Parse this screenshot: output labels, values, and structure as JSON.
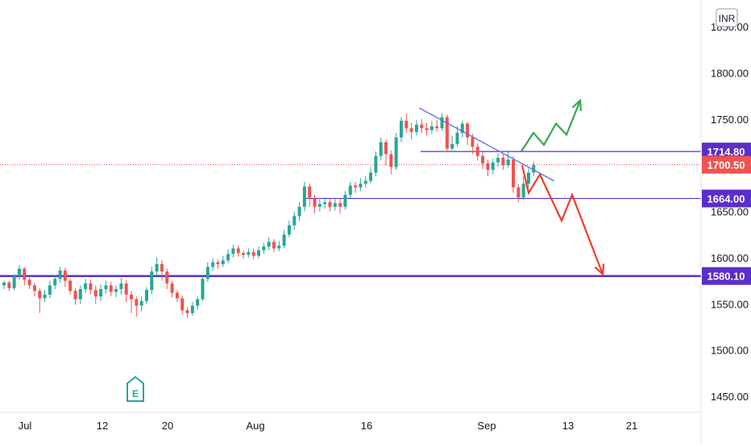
{
  "header": {
    "currency": "INR"
  },
  "earnings_badge": "E",
  "colors": {
    "up": "#26a69a",
    "down": "#ef5350",
    "level_line": "#5b2ec9",
    "trend_line": "#5b6ee1",
    "projection_up": "#34a853",
    "projection_down": "#ef3b2c",
    "current_price_line": "#ef5350",
    "text": "#131722"
  },
  "chart_data": {
    "type": "candlestick",
    "x_tick_labels": [
      "Jul",
      "12",
      "20",
      "Aug",
      "16",
      "Sep",
      "13",
      "21"
    ],
    "y_tick_labels": [
      "1850.00",
      "1800.00",
      "1750.00",
      "1700.00",
      "1650.00",
      "1600.00",
      "1550.00",
      "1500.00",
      "1450.00"
    ],
    "y_range": [
      1435,
      1870
    ],
    "horizontal_levels": [
      {
        "value": 1714.8,
        "label": "1714.80",
        "style": "thin"
      },
      {
        "value": 1664.0,
        "label": "1664.00",
        "style": "thin"
      },
      {
        "value": 1580.1,
        "label": "1580.10",
        "style": "thick"
      }
    ],
    "current_price": {
      "value": 1700.5,
      "label": "1700.50"
    },
    "candles": [
      [
        1570,
        1573,
        1575,
        1566
      ],
      [
        1573,
        1567,
        1575,
        1564
      ],
      [
        1567,
        1580,
        1582,
        1565
      ],
      [
        1580,
        1588,
        1592,
        1576
      ],
      [
        1588,
        1576,
        1590,
        1570
      ],
      [
        1576,
        1570,
        1580,
        1566
      ],
      [
        1570,
        1564,
        1573,
        1558
      ],
      [
        1564,
        1556,
        1567,
        1540
      ],
      [
        1556,
        1560,
        1565,
        1552
      ],
      [
        1560,
        1570,
        1575,
        1556
      ],
      [
        1570,
        1577,
        1581,
        1566
      ],
      [
        1577,
        1586,
        1590,
        1573
      ],
      [
        1586,
        1575,
        1589,
        1568
      ],
      [
        1575,
        1564,
        1578,
        1560
      ],
      [
        1564,
        1555,
        1567,
        1549
      ],
      [
        1555,
        1566,
        1570,
        1550
      ],
      [
        1566,
        1572,
        1577,
        1562
      ],
      [
        1572,
        1565,
        1576,
        1560
      ],
      [
        1565,
        1558,
        1570,
        1550
      ],
      [
        1558,
        1566,
        1571,
        1553
      ],
      [
        1566,
        1570,
        1575,
        1561
      ],
      [
        1570,
        1563,
        1574,
        1558
      ],
      [
        1563,
        1566,
        1570,
        1557
      ],
      [
        1566,
        1572,
        1578,
        1560
      ],
      [
        1572,
        1560,
        1576,
        1552
      ],
      [
        1560,
        1555,
        1564,
        1540
      ],
      [
        1555,
        1548,
        1558,
        1536
      ],
      [
        1548,
        1553,
        1558,
        1542
      ],
      [
        1553,
        1565,
        1568,
        1550
      ],
      [
        1565,
        1585,
        1590,
        1560
      ],
      [
        1585,
        1593,
        1600,
        1578
      ],
      [
        1593,
        1585,
        1597,
        1575
      ],
      [
        1585,
        1572,
        1588,
        1566
      ],
      [
        1572,
        1562,
        1575,
        1557
      ],
      [
        1562,
        1556,
        1565,
        1552
      ],
      [
        1556,
        1543,
        1559,
        1538
      ],
      [
        1543,
        1540,
        1546,
        1535
      ],
      [
        1540,
        1548,
        1552,
        1537
      ],
      [
        1548,
        1555,
        1558,
        1544
      ],
      [
        1555,
        1577,
        1580,
        1553
      ],
      [
        1577,
        1590,
        1595,
        1574
      ],
      [
        1590,
        1595,
        1599,
        1586
      ],
      [
        1595,
        1593,
        1598,
        1588
      ],
      [
        1593,
        1597,
        1602,
        1590
      ],
      [
        1597,
        1604,
        1609,
        1594
      ],
      [
        1604,
        1610,
        1614,
        1600
      ],
      [
        1610,
        1605,
        1613,
        1601
      ],
      [
        1605,
        1603,
        1608,
        1599
      ],
      [
        1603,
        1606,
        1610,
        1600
      ],
      [
        1606,
        1602,
        1610,
        1598
      ],
      [
        1602,
        1608,
        1612,
        1599
      ],
      [
        1608,
        1612,
        1616,
        1604
      ],
      [
        1612,
        1617,
        1622,
        1608
      ],
      [
        1617,
        1610,
        1620,
        1606
      ],
      [
        1610,
        1613,
        1618,
        1607
      ],
      [
        1613,
        1625,
        1630,
        1610
      ],
      [
        1625,
        1635,
        1640,
        1622
      ],
      [
        1635,
        1645,
        1650,
        1630
      ],
      [
        1645,
        1655,
        1660,
        1640
      ],
      [
        1655,
        1677,
        1682,
        1650
      ],
      [
        1677,
        1665,
        1680,
        1655
      ],
      [
        1665,
        1655,
        1668,
        1648
      ],
      [
        1655,
        1658,
        1663,
        1650
      ],
      [
        1658,
        1660,
        1665,
        1653
      ],
      [
        1660,
        1655,
        1664,
        1650
      ],
      [
        1655,
        1659,
        1663,
        1651
      ],
      [
        1659,
        1655,
        1664,
        1648
      ],
      [
        1655,
        1668,
        1672,
        1652
      ],
      [
        1668,
        1678,
        1682,
        1664
      ],
      [
        1678,
        1676,
        1682,
        1670
      ],
      [
        1676,
        1680,
        1686,
        1672
      ],
      [
        1680,
        1683,
        1688,
        1676
      ],
      [
        1683,
        1692,
        1698,
        1680
      ],
      [
        1692,
        1710,
        1715,
        1688
      ],
      [
        1710,
        1725,
        1730,
        1705
      ],
      [
        1725,
        1712,
        1728,
        1700
      ],
      [
        1712,
        1698,
        1716,
        1690
      ],
      [
        1698,
        1730,
        1735,
        1695
      ],
      [
        1730,
        1748,
        1752,
        1725
      ],
      [
        1748,
        1740,
        1756,
        1735
      ],
      [
        1740,
        1736,
        1746,
        1728
      ],
      [
        1736,
        1744,
        1749,
        1732
      ],
      [
        1744,
        1740,
        1750,
        1735
      ],
      [
        1740,
        1738,
        1746,
        1732
      ],
      [
        1738,
        1742,
        1748,
        1734
      ],
      [
        1742,
        1740,
        1749,
        1736
      ],
      [
        1740,
        1752,
        1756,
        1737
      ],
      [
        1752,
        1718,
        1755,
        1714
      ],
      [
        1718,
        1723,
        1732,
        1716
      ],
      [
        1723,
        1735,
        1742,
        1720
      ],
      [
        1735,
        1745,
        1748,
        1730
      ],
      [
        1745,
        1730,
        1747,
        1722
      ],
      [
        1730,
        1720,
        1734,
        1712
      ],
      [
        1720,
        1710,
        1724,
        1705
      ],
      [
        1710,
        1702,
        1714,
        1696
      ],
      [
        1702,
        1695,
        1706,
        1688
      ],
      [
        1695,
        1703,
        1707,
        1690
      ],
      [
        1703,
        1708,
        1713,
        1698
      ],
      [
        1708,
        1700,
        1712,
        1695
      ],
      [
        1700,
        1706,
        1716,
        1697
      ],
      [
        1706,
        1676,
        1710,
        1670
      ],
      [
        1676,
        1665,
        1680,
        1660
      ],
      [
        1665,
        1680,
        1688,
        1662
      ],
      [
        1680,
        1692,
        1697,
        1676
      ],
      [
        1692,
        1700,
        1704,
        1688
      ]
    ],
    "trend_line": {
      "from": [
        1762,
        1
      ],
      "to": [
        1683,
        1
      ]
    },
    "projections": {
      "bullish": [
        1715,
        1735,
        1722,
        1745,
        1733,
        1770
      ],
      "bearish": [
        1700,
        1670,
        1690,
        1640,
        1668,
        1582
      ]
    }
  }
}
